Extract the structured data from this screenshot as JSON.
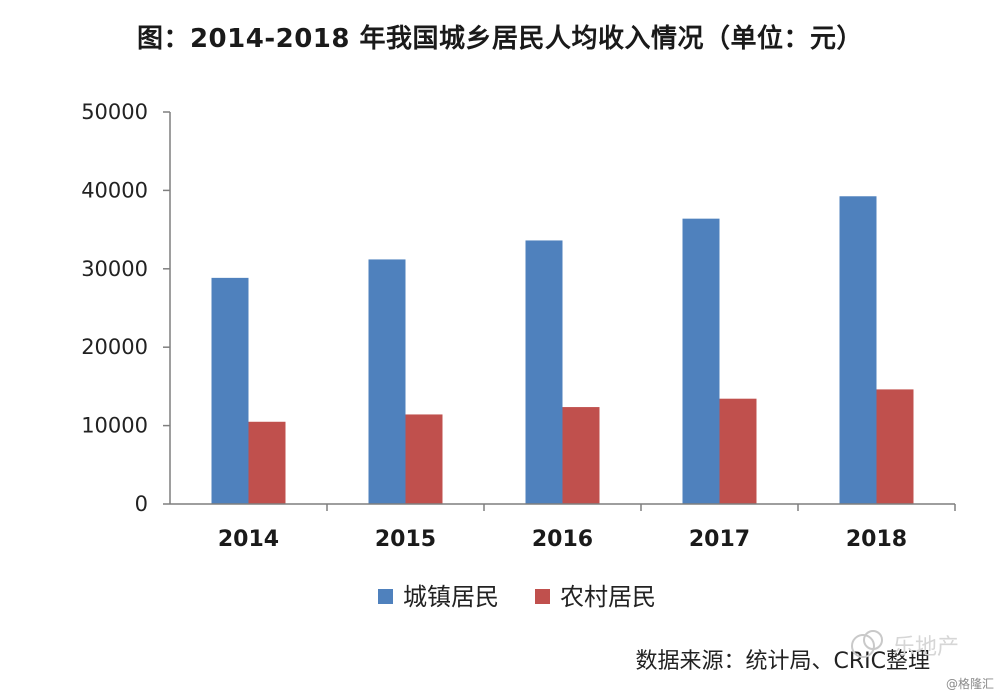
{
  "title": "图：2014-2018 年我国城乡居民人均收入情况（单位：元）",
  "source": "数据来源：统计局、CRIC整理",
  "watermark": "@格隆汇",
  "overlay": "乐地产",
  "colors": {
    "urban": "#4f81bd",
    "rural": "#c0504d",
    "axis": "#7f7f7f"
  },
  "chart_data": {
    "type": "bar",
    "title": "图：2014-2018 年我国城乡居民人均收入情况（单位：元）",
    "xlabel": "",
    "ylabel": "",
    "categories": [
      "2014",
      "2015",
      "2016",
      "2017",
      "2018"
    ],
    "series": [
      {
        "name": "城镇居民",
        "color": "#4f81bd",
        "values": [
          28844,
          31195,
          33616,
          36396,
          39251
        ]
      },
      {
        "name": "农村居民",
        "color": "#c0504d",
        "values": [
          10489,
          11422,
          12363,
          13432,
          14617
        ]
      }
    ],
    "ylim": [
      0,
      50000
    ],
    "yticks": [
      0,
      10000,
      20000,
      30000,
      40000,
      50000
    ],
    "grid": false,
    "legend": "bottom"
  }
}
